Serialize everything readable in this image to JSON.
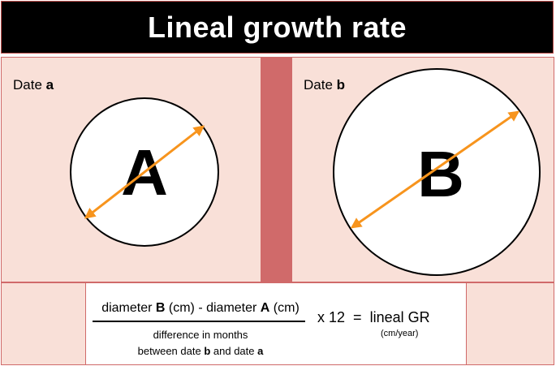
{
  "title": "Lineal growth rate",
  "panel_a": {
    "date_prefix": "Date ",
    "date_letter": "a",
    "circle_letter": "A"
  },
  "panel_b": {
    "date_prefix": "Date ",
    "date_letter": "b",
    "circle_letter": "B"
  },
  "formula": {
    "num_part1": "diameter ",
    "num_b": "B",
    "num_part2": " (cm) - diameter ",
    "num_a": "A",
    "num_part3": " (cm)",
    "den_line1": "difference in months",
    "den_line2_prefix": "between date ",
    "den_b": "b",
    "den_line2_mid": " and date ",
    "den_a": "a",
    "multiplier": "x 12",
    "equals": "=",
    "result": "lineal GR",
    "unit": "(cm/year)"
  },
  "colors": {
    "title_bg": "#000000",
    "panel_bg": "#f9e0d8",
    "divider": "#d06a6a",
    "arrow": "#f7941d"
  }
}
